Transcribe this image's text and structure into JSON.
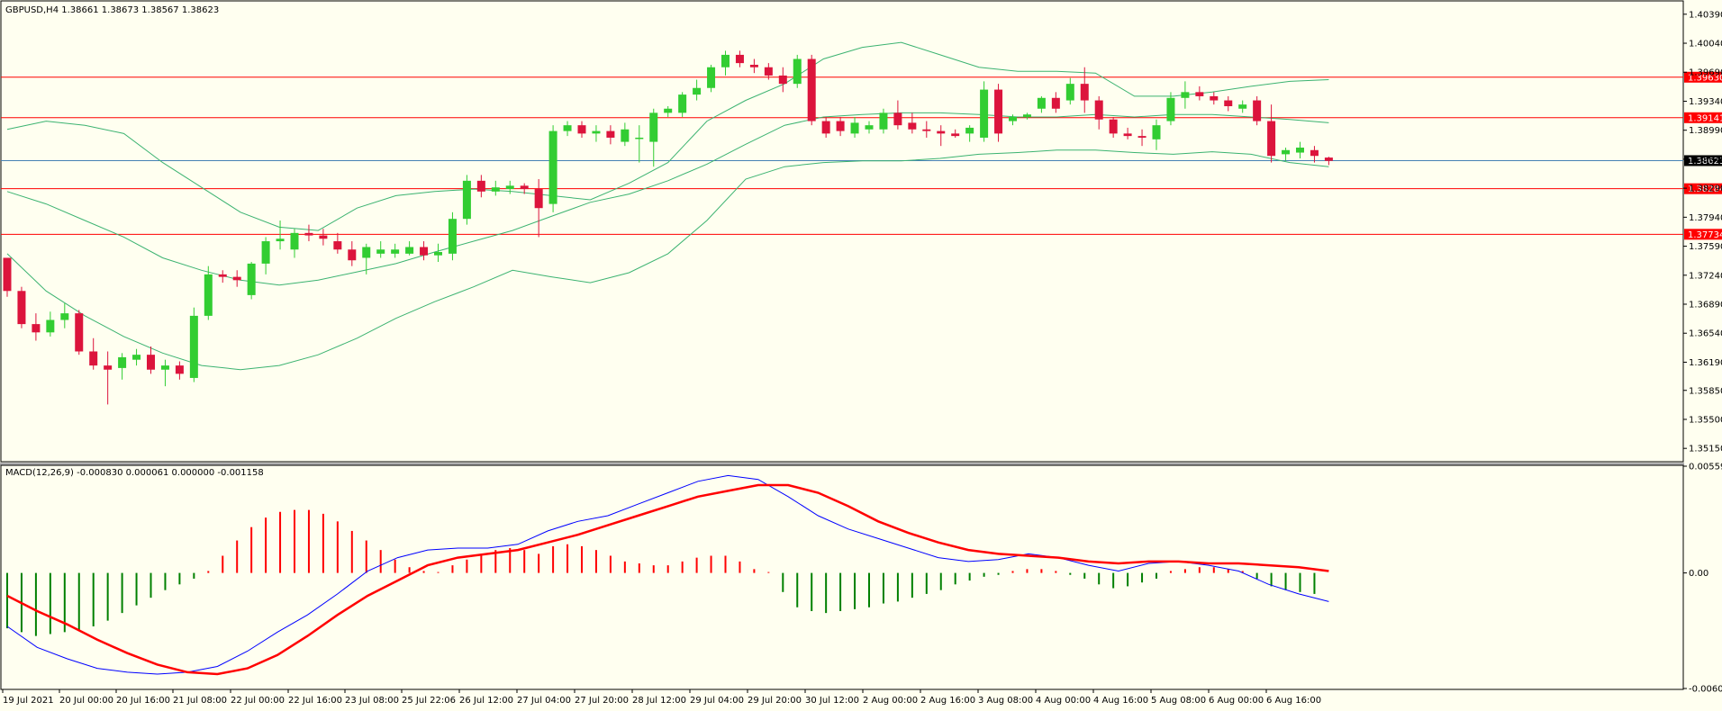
{
  "chart_data": {
    "type": "candlestick",
    "symbol_header": "GBPUSD,H4  1.38661 1.38673 1.38567 1.38623",
    "indicator_header": "MACD(12,26,9) -0.000830 0.000061 0.000000 -0.001158",
    "price_axis": {
      "ticks": [
        "1.40390",
        "1.40040",
        "1.39690",
        "1.39340",
        "1.38990",
        "1.38640",
        "1.38290",
        "1.37940",
        "1.37590",
        "1.37240",
        "1.36890",
        "1.36540",
        "1.36190",
        "1.35850",
        "1.35500",
        "1.35150"
      ],
      "range": [
        1.35,
        1.4054
      ]
    },
    "macd_axis": {
      "ticks": [
        "0.005592",
        "0.00",
        "-0.006055"
      ],
      "range": [
        -0.006055,
        0.005592
      ]
    },
    "time_labels": [
      "19 Jul 2021",
      "20 Jul 00:00",
      "20 Jul 16:00",
      "21 Jul 08:00",
      "22 Jul 00:00",
      "22 Jul 16:00",
      "23 Jul 08:00",
      "25 Jul 22:06",
      "26 Jul 12:00",
      "27 Jul 04:00",
      "27 Jul 20:00",
      "28 Jul 12:00",
      "29 Jul 04:00",
      "29 Jul 20:00",
      "30 Jul 12:00",
      "2 Aug 00:00",
      "2 Aug 16:00",
      "3 Aug 08:00",
      "4 Aug 00:00",
      "4 Aug 16:00",
      "5 Aug 08:00",
      "6 Aug 00:00",
      "6 Aug 16:00"
    ],
    "horizontal_levels": [
      {
        "label": "1.39630",
        "value": 1.3963,
        "color": "#ff0000"
      },
      {
        "label": "1.39141",
        "value": 1.39141,
        "color": "#ff0000"
      },
      {
        "label": "1.38284",
        "value": 1.38284,
        "color": "#ff0000"
      },
      {
        "label": "1.37734",
        "value": 1.37734,
        "color": "#ff0000"
      }
    ],
    "current_price": {
      "label": "1.38623",
      "value": 1.38623
    },
    "colors": {
      "background": "#fffff0",
      "bull": "#32cd32",
      "bear": "#dc143c",
      "bands": "#3cb371",
      "macd_main": "#0000ff",
      "macd_signal": "#ff0000",
      "hist_pos": "#ff0000",
      "hist_neg": "#008000",
      "levels": "#ff0000",
      "current": "#4682b4"
    },
    "candles_ohlc": [
      [
        1.3745,
        1.3745,
        1.3698,
        1.3705
      ],
      [
        1.3705,
        1.371,
        1.366,
        1.3665
      ],
      [
        1.3665,
        1.3678,
        1.3645,
        1.3655
      ],
      [
        1.3655,
        1.368,
        1.365,
        1.367
      ],
      [
        1.367,
        1.369,
        1.366,
        1.3678
      ],
      [
        1.3678,
        1.3682,
        1.3628,
        1.3632
      ],
      [
        1.3632,
        1.3648,
        1.361,
        1.3615
      ],
      [
        1.3615,
        1.3632,
        1.3568,
        1.361
      ],
      [
        1.3612,
        1.363,
        1.3598,
        1.3625
      ],
      [
        1.3622,
        1.3635,
        1.3615,
        1.3628
      ],
      [
        1.3628,
        1.3638,
        1.3605,
        1.361
      ],
      [
        1.361,
        1.3622,
        1.359,
        1.3615
      ],
      [
        1.3615,
        1.362,
        1.3598,
        1.3605
      ],
      [
        1.36,
        1.3685,
        1.3595,
        1.3675
      ],
      [
        1.3675,
        1.3735,
        1.367,
        1.3725
      ],
      [
        1.3725,
        1.373,
        1.3715,
        1.3722
      ],
      [
        1.3722,
        1.373,
        1.371,
        1.3718
      ],
      [
        1.37,
        1.374,
        1.3695,
        1.3738
      ],
      [
        1.3738,
        1.377,
        1.3725,
        1.3765
      ],
      [
        1.3765,
        1.379,
        1.3755,
        1.3768
      ],
      [
        1.3755,
        1.378,
        1.3745,
        1.3775
      ],
      [
        1.3775,
        1.3785,
        1.3765,
        1.3772
      ],
      [
        1.3772,
        1.378,
        1.376,
        1.3768
      ],
      [
        1.3765,
        1.3775,
        1.375,
        1.3755
      ],
      [
        1.3755,
        1.3765,
        1.3735,
        1.3742
      ],
      [
        1.3745,
        1.3762,
        1.3725,
        1.3758
      ],
      [
        1.375,
        1.3765,
        1.3745,
        1.3755
      ],
      [
        1.375,
        1.3762,
        1.3745,
        1.3755
      ],
      [
        1.375,
        1.3765,
        1.3748,
        1.3758
      ],
      [
        1.3758,
        1.3765,
        1.3742,
        1.3748
      ],
      [
        1.3748,
        1.3762,
        1.374,
        1.3752
      ],
      [
        1.375,
        1.38,
        1.3742,
        1.3792
      ],
      [
        1.3792,
        1.3845,
        1.3785,
        1.3838
      ],
      [
        1.3838,
        1.3845,
        1.3818,
        1.3825
      ],
      [
        1.3825,
        1.3838,
        1.382,
        1.383
      ],
      [
        1.3828,
        1.3838,
        1.3822,
        1.3832
      ],
      [
        1.3832,
        1.3835,
        1.3822,
        1.3828
      ],
      [
        1.3828,
        1.384,
        1.377,
        1.3805
      ],
      [
        1.381,
        1.3905,
        1.38,
        1.3898
      ],
      [
        1.3898,
        1.391,
        1.3892,
        1.3905
      ],
      [
        1.3905,
        1.391,
        1.389,
        1.3895
      ],
      [
        1.3895,
        1.3905,
        1.3885,
        1.3898
      ],
      [
        1.3898,
        1.3905,
        1.3882,
        1.389
      ],
      [
        1.3885,
        1.3908,
        1.388,
        1.39
      ],
      [
        1.389,
        1.3905,
        1.386,
        1.389
      ],
      [
        1.3885,
        1.3925,
        1.3855,
        1.392
      ],
      [
        1.392,
        1.3928,
        1.3915,
        1.3925
      ],
      [
        1.392,
        1.3945,
        1.3915,
        1.3942
      ],
      [
        1.3942,
        1.396,
        1.3935,
        1.395
      ],
      [
        1.395,
        1.3978,
        1.3945,
        1.3975
      ],
      [
        1.3975,
        1.3995,
        1.3965,
        1.399
      ],
      [
        1.399,
        1.3995,
        1.3975,
        1.398
      ],
      [
        1.3978,
        1.3985,
        1.3968,
        1.3975
      ],
      [
        1.3975,
        1.398,
        1.396,
        1.3965
      ],
      [
        1.3965,
        1.3975,
        1.3945,
        1.3955
      ],
      [
        1.3955,
        1.399,
        1.395,
        1.3985
      ],
      [
        1.3985,
        1.399,
        1.3905,
        1.391
      ],
      [
        1.391,
        1.3915,
        1.389,
        1.3895
      ],
      [
        1.391,
        1.3915,
        1.3892,
        1.3898
      ],
      [
        1.3895,
        1.3915,
        1.389,
        1.3908
      ],
      [
        1.39,
        1.391,
        1.3895,
        1.3905
      ],
      [
        1.39,
        1.3925,
        1.3895,
        1.392
      ],
      [
        1.392,
        1.3935,
        1.39,
        1.3905
      ],
      [
        1.3908,
        1.392,
        1.3895,
        1.39
      ],
      [
        1.39,
        1.391,
        1.389,
        1.3898
      ],
      [
        1.3898,
        1.3905,
        1.388,
        1.3895
      ],
      [
        1.3895,
        1.39,
        1.389,
        1.3892
      ],
      [
        1.3895,
        1.3905,
        1.3885,
        1.3902
      ],
      [
        1.389,
        1.3958,
        1.3885,
        1.3948
      ],
      [
        1.3948,
        1.3955,
        1.3885,
        1.3895
      ],
      [
        1.391,
        1.3918,
        1.3905,
        1.3915
      ],
      [
        1.3915,
        1.392,
        1.3912,
        1.3918
      ],
      [
        1.3925,
        1.394,
        1.392,
        1.3938
      ],
      [
        1.3938,
        1.3945,
        1.392,
        1.3925
      ],
      [
        1.3935,
        1.3962,
        1.393,
        1.3955
      ],
      [
        1.3955,
        1.3975,
        1.392,
        1.3935
      ],
      [
        1.3935,
        1.394,
        1.39,
        1.3912
      ],
      [
        1.3912,
        1.3915,
        1.389,
        1.3895
      ],
      [
        1.3895,
        1.3902,
        1.3888,
        1.3892
      ],
      [
        1.3892,
        1.39,
        1.388,
        1.389
      ],
      [
        1.3888,
        1.3912,
        1.3875,
        1.3905
      ],
      [
        1.391,
        1.3945,
        1.3905,
        1.3938
      ],
      [
        1.3938,
        1.3958,
        1.3925,
        1.3945
      ],
      [
        1.3945,
        1.3952,
        1.3935,
        1.394
      ],
      [
        1.394,
        1.3945,
        1.393,
        1.3935
      ],
      [
        1.3935,
        1.394,
        1.3922,
        1.3928
      ],
      [
        1.3925,
        1.3935,
        1.392,
        1.393
      ],
      [
        1.3935,
        1.394,
        1.3905,
        1.391
      ],
      [
        1.391,
        1.393,
        1.386,
        1.3868
      ],
      [
        1.387,
        1.3878,
        1.3862,
        1.3875
      ],
      [
        1.3872,
        1.3885,
        1.3865,
        1.3878
      ],
      [
        1.3875,
        1.388,
        1.386,
        1.3868
      ],
      [
        1.3866,
        1.3867,
        1.3857,
        1.3862
      ]
    ],
    "bands_x_range": [
      0.5,
      92.5
    ],
    "band_upper": [
      1.39,
      1.391,
      1.3905,
      1.3895,
      1.386,
      1.383,
      1.38,
      1.3782,
      1.3778,
      1.3805,
      1.382,
      1.3825,
      1.3828,
      1.3825,
      1.382,
      1.3815,
      1.3835,
      1.386,
      1.391,
      1.3935,
      1.3955,
      1.3985,
      1.3999,
      1.4005,
      1.399,
      1.3975,
      1.397,
      1.397,
      1.3968,
      1.394,
      1.394,
      1.3945,
      1.3952,
      1.3958,
      1.396
    ],
    "band_middle": [
      1.3825,
      1.381,
      1.379,
      1.377,
      1.3745,
      1.373,
      1.3718,
      1.3712,
      1.3718,
      1.3728,
      1.3738,
      1.3752,
      1.3765,
      1.3778,
      1.3795,
      1.3812,
      1.3822,
      1.3838,
      1.3858,
      1.3882,
      1.3905,
      1.3915,
      1.3918,
      1.392,
      1.392,
      1.3918,
      1.3915,
      1.3915,
      1.3918,
      1.3915,
      1.3918,
      1.3918,
      1.3915,
      1.3912,
      1.3908
    ],
    "band_lower": [
      1.375,
      1.3705,
      1.3675,
      1.365,
      1.363,
      1.3615,
      1.361,
      1.3615,
      1.3628,
      1.3648,
      1.3672,
      1.3692,
      1.371,
      1.373,
      1.3722,
      1.3715,
      1.3727,
      1.375,
      1.379,
      1.384,
      1.3855,
      1.386,
      1.3862,
      1.3862,
      1.3865,
      1.387,
      1.3872,
      1.3875,
      1.3875,
      1.3872,
      1.387,
      1.3873,
      1.387,
      1.386,
      1.3855
    ],
    "macd_hist": [
      -0.0029,
      -0.0031,
      -0.0033,
      -0.0032,
      -0.0031,
      -0.003,
      -0.0028,
      -0.0025,
      -0.0021,
      -0.0017,
      -0.0013,
      -0.0009,
      -0.0006,
      -0.0003,
      0.0001,
      0.0009,
      0.0017,
      0.0024,
      0.0029,
      0.0032,
      0.0033,
      0.0033,
      0.0031,
      0.0027,
      0.0022,
      0.0017,
      0.0012,
      0.0007,
      0.0003,
      0.0001,
      0.0,
      0.0004,
      0.0007,
      0.001,
      0.0012,
      0.0013,
      0.0012,
      0.001,
      0.0014,
      0.0015,
      0.0014,
      0.0012,
      0.0009,
      0.0006,
      0.0005,
      0.0004,
      0.0004,
      0.0006,
      0.0008,
      0.0009,
      0.0009,
      0.0006,
      0.0002,
      0.0,
      -0.001,
      -0.0018,
      -0.002,
      -0.0021,
      -0.002,
      -0.0019,
      -0.0018,
      -0.0016,
      -0.0015,
      -0.0013,
      -0.0011,
      -0.0009,
      -0.0006,
      -0.0004,
      -0.0002,
      -0.0001,
      0.0001,
      0.0002,
      0.0002,
      0.0001,
      -0.0001,
      -0.0003,
      -0.0006,
      -0.0008,
      -0.0007,
      -0.0005,
      -0.0003,
      0.0001,
      0.0002,
      0.0003,
      0.0003,
      0.0002,
      0.0001,
      -0.0003,
      -0.0007,
      -0.0009,
      -0.001,
      -0.0011
    ],
    "macd_x_range": [
      0.5,
      92.5
    ],
    "macd_main": [
      -0.0028,
      -0.0039,
      -0.0045,
      -0.005,
      -0.0052,
      -0.0053,
      -0.0052,
      -0.0049,
      -0.0041,
      -0.0031,
      -0.0022,
      -0.0011,
      0.0001,
      0.0008,
      0.0012,
      0.0013,
      0.0013,
      0.0015,
      0.0022,
      0.0027,
      0.003,
      0.0036,
      0.0042,
      0.0048,
      0.0051,
      0.0049,
      0.004,
      0.003,
      0.0023,
      0.0018,
      0.0013,
      0.0008,
      0.0006,
      0.0007,
      0.001,
      0.0008,
      0.0004,
      0.0001,
      0.0005,
      0.0006,
      0.0004,
      0.0001,
      -0.0006,
      -0.0011,
      -0.0015
    ],
    "macd_signal": [
      -0.0012,
      -0.002,
      -0.0027,
      -0.0035,
      -0.0042,
      -0.0048,
      -0.0052,
      -0.0053,
      -0.005,
      -0.0043,
      -0.0033,
      -0.0022,
      -0.0012,
      -0.0004,
      0.0004,
      0.0008,
      0.001,
      0.0012,
      0.0016,
      0.002,
      0.0025,
      0.003,
      0.0035,
      0.004,
      0.0043,
      0.0046,
      0.0046,
      0.0042,
      0.0035,
      0.0027,
      0.0021,
      0.0016,
      0.0012,
      0.001,
      0.0009,
      0.0008,
      0.0006,
      0.0005,
      0.0006,
      0.0006,
      0.0005,
      0.0005,
      0.0004,
      0.0003,
      0.0001
    ]
  }
}
